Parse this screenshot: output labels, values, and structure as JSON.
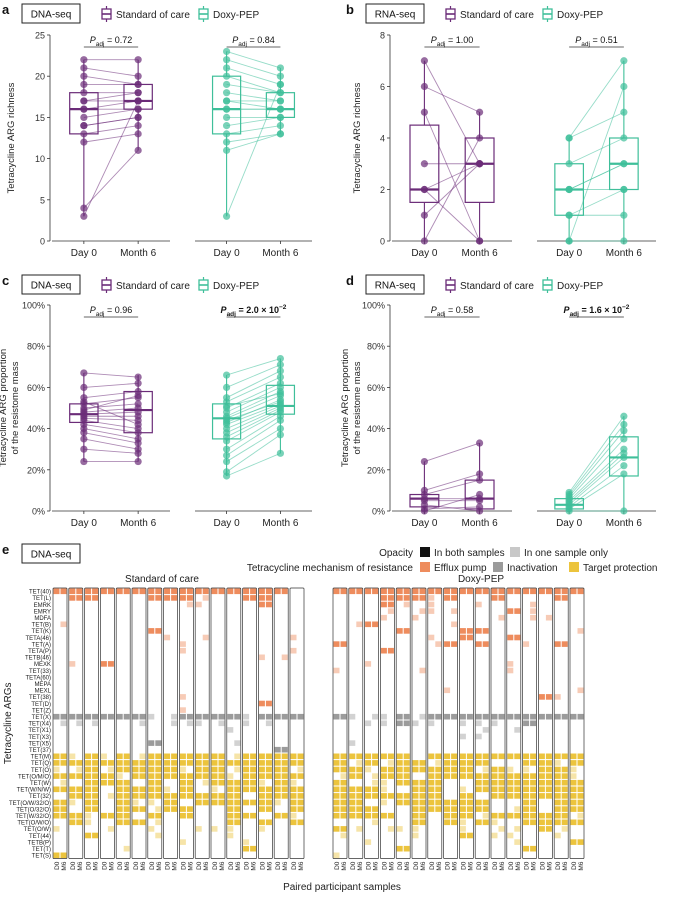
{
  "colors": {
    "soc": "#6b2c78",
    "doxy": "#3fbf9a",
    "efflux": "#ee8c5d",
    "inact": "#9b9b9b",
    "target": "#ecc43d"
  },
  "legend": {
    "soc": "Standard of care",
    "doxy": "Doxy-PEP"
  },
  "chart_data": [
    {
      "panel": "a",
      "type": "box+paired-scatter",
      "assay": "DNA-seq",
      "ylabel": "Tetracycline ARG richness",
      "ylim": [
        0,
        25
      ],
      "yticks": [
        0,
        5,
        10,
        15,
        20,
        25
      ],
      "groups": [
        {
          "name": "Standard of care",
          "categories": [
            "Day 0",
            "Month 6"
          ],
          "day0": [
            22,
            21,
            20,
            19,
            18,
            17,
            17,
            16,
            16,
            15,
            14,
            14,
            13,
            12,
            4,
            3
          ],
          "month6": [
            22,
            20,
            19,
            19,
            18,
            18,
            17,
            17,
            16,
            16,
            15,
            15,
            14,
            13,
            11,
            17
          ],
          "box": [
            {
              "q1": 13,
              "median": 16,
              "q3": 18,
              "lo": 3,
              "hi": 22
            },
            {
              "q1": 16,
              "median": 17,
              "q3": 19,
              "lo": 11,
              "hi": 22
            }
          ],
          "p_prefix": "P",
          "p_sub": "adj",
          "p_value": " = 0.72",
          "p_bold": false
        },
        {
          "name": "Doxy-PEP",
          "categories": [
            "Day 0",
            "Month 6"
          ],
          "day0": [
            23,
            22,
            21,
            20,
            19,
            18,
            17,
            17,
            16,
            16,
            15,
            14,
            13,
            12,
            11,
            3
          ],
          "month6": [
            21,
            20,
            19,
            18,
            18,
            17,
            17,
            16,
            16,
            16,
            15,
            15,
            14,
            13,
            13,
            19
          ],
          "box": [
            {
              "q1": 13,
              "median": 16,
              "q3": 20,
              "lo": 3,
              "hi": 23
            },
            {
              "q1": 15,
              "median": 16,
              "q3": 18,
              "lo": 13,
              "hi": 21
            }
          ],
          "p_prefix": "P",
          "p_sub": "adj",
          "p_value": " = 0.84",
          "p_bold": false
        }
      ]
    },
    {
      "panel": "b",
      "type": "box+paired-scatter",
      "assay": "RNA-seq",
      "ylabel": "Tetracycline ARG richness",
      "ylim": [
        0,
        8
      ],
      "yticks": [
        0,
        2,
        4,
        6,
        8
      ],
      "groups": [
        {
          "name": "Standard of care",
          "categories": [
            "Day 0",
            "Month 6"
          ],
          "day0": [
            7,
            6,
            5,
            3,
            2,
            2,
            1,
            0
          ],
          "month6": [
            3,
            5,
            0,
            3,
            3,
            0,
            3,
            4
          ],
          "box": [
            {
              "q1": 1.5,
              "median": 2,
              "q3": 4.5,
              "lo": 0,
              "hi": 7
            },
            {
              "q1": 1.5,
              "median": 3,
              "q3": 4,
              "lo": 0,
              "hi": 5
            }
          ],
          "p_prefix": "P",
          "p_sub": "adj",
          "p_value": " = 1.00",
          "p_bold": false
        },
        {
          "name": "Doxy-PEP",
          "categories": [
            "Day 0",
            "Month 6"
          ],
          "day0": [
            4,
            4,
            3,
            2,
            2,
            2,
            1,
            1,
            0,
            0
          ],
          "month6": [
            7,
            5,
            4,
            3,
            3,
            2,
            2,
            1,
            0,
            6
          ],
          "box": [
            {
              "q1": 1,
              "median": 2,
              "q3": 3,
              "lo": 0,
              "hi": 4
            },
            {
              "q1": 2,
              "median": 3,
              "q3": 4,
              "lo": 0,
              "hi": 7
            }
          ],
          "p_prefix": "P",
          "p_sub": "adj",
          "p_value": " = 0.51",
          "p_bold": false
        }
      ]
    },
    {
      "panel": "c",
      "type": "box+paired-scatter",
      "assay": "DNA-seq",
      "ylabel": "Tetracycline ARG proportion",
      "ylabel2": "of the resistome mass",
      "ylim": [
        0,
        100
      ],
      "yticks": [
        0,
        20,
        40,
        60,
        80,
        100
      ],
      "tick_suffix": "%",
      "groups": [
        {
          "name": "Standard of care",
          "categories": [
            "Day 0",
            "Month 6"
          ],
          "day0": [
            67,
            60,
            55,
            52,
            50,
            48,
            47,
            46,
            45,
            44,
            42,
            40,
            38,
            35,
            30,
            24,
            49,
            53
          ],
          "month6": [
            65,
            62,
            58,
            55,
            52,
            50,
            48,
            46,
            44,
            40,
            38,
            35,
            33,
            30,
            28,
            24,
            56,
            42
          ],
          "box": [
            {
              "q1": 43,
              "median": 47,
              "q3": 52,
              "lo": 24,
              "hi": 67
            },
            {
              "q1": 38,
              "median": 49,
              "q3": 58,
              "lo": 24,
              "hi": 66
            }
          ],
          "p_prefix": "P",
          "p_sub": "adj",
          "p_value": " = 0.96",
          "p_bold": false
        },
        {
          "name": "Doxy-PEP",
          "categories": [
            "Day 0",
            "Month 6"
          ],
          "day0": [
            66,
            60,
            55,
            53,
            50,
            48,
            46,
            45,
            43,
            42,
            40,
            38,
            36,
            34,
            30,
            27,
            24,
            19,
            17,
            51,
            44
          ],
          "month6": [
            74,
            71,
            68,
            65,
            62,
            60,
            58,
            56,
            54,
            52,
            51,
            50,
            49,
            48,
            46,
            44,
            40,
            37,
            28,
            57,
            53
          ],
          "box": [
            {
              "q1": 35,
              "median": 45,
              "q3": 52,
              "lo": 17,
              "hi": 66
            },
            {
              "q1": 47,
              "median": 51,
              "q3": 61,
              "lo": 28,
              "hi": 74
            }
          ],
          "p_prefix": "P",
          "p_sub": "adj",
          "p_value": " = 2.0 × 10",
          "p_exp": "−2",
          "p_bold": true
        }
      ]
    },
    {
      "panel": "d",
      "type": "box+paired-scatter",
      "assay": "RNA-seq",
      "ylabel": "Tetracycline ARG proportion",
      "ylabel2": "of the resistome mass",
      "ylim": [
        0,
        100
      ],
      "yticks": [
        0,
        20,
        40,
        60,
        80,
        100
      ],
      "tick_suffix": "%",
      "groups": [
        {
          "name": "Standard of care",
          "categories": [
            "Day 0",
            "Month 6"
          ],
          "day0": [
            24,
            10,
            8,
            6,
            5,
            3,
            1,
            0
          ],
          "month6": [
            33,
            18,
            15,
            6,
            5,
            0,
            2,
            8
          ],
          "box": [
            {
              "q1": 2,
              "median": 6,
              "q3": 8,
              "lo": 0,
              "hi": 24
            },
            {
              "q1": 1,
              "median": 6,
              "q3": 15,
              "lo": 0,
              "hi": 33
            }
          ],
          "p_prefix": "P",
          "p_sub": "adj",
          "p_value": " = 0.58",
          "p_bold": false
        },
        {
          "name": "Doxy-PEP",
          "categories": [
            "Day 0",
            "Month 6"
          ],
          "day0": [
            9,
            7,
            6,
            5,
            3,
            2,
            1,
            0,
            8,
            4
          ],
          "month6": [
            46,
            39,
            35,
            30,
            26,
            22,
            18,
            0,
            42,
            28
          ],
          "box": [
            {
              "q1": 1,
              "median": 3,
              "q3": 6,
              "lo": 0,
              "hi": 9
            },
            {
              "q1": 17,
              "median": 26,
              "q3": 36,
              "lo": 0,
              "hi": 46
            }
          ],
          "p_prefix": "P",
          "p_sub": "adj",
          "p_value": " = 1.6 × 10",
          "p_exp": "−2",
          "p_bold": true
        }
      ]
    },
    {
      "panel": "e",
      "type": "heatmap",
      "assay": "DNA-seq",
      "opacity_title": "Opacity",
      "opacity_both": "In both samples",
      "opacity_one": "In one sample only",
      "mechanism_title": "Tetracycline mechanism of resistance",
      "mechanisms": [
        "Efflux pump",
        "Inactivation",
        "Target protection"
      ],
      "ylabel": "Tetracycline ARGs",
      "xlabel": "Paired participant samples",
      "group_titles": [
        "Standard of care",
        "Doxy-PEP"
      ],
      "pairs_per_group": 16,
      "sample_labels": [
        "D0",
        "M6"
      ],
      "genes": [
        "TET(40)",
        "TET(L)",
        "EMRK",
        "EMRY",
        "MDFA",
        "TET(B)",
        "TET(K)",
        "TETA(46)",
        "TET(A)",
        "TETA(P)",
        "TETB(46)",
        "MEXK",
        "TET(33)",
        "TETA(60)",
        "MEPA",
        "MEXL",
        "TET(38)",
        "TET(D)",
        "TET(Z)",
        "TET(X)",
        "TET(X4)",
        "TET(X1)",
        "TET(X3)",
        "TET(X5)",
        "TET(37)",
        "TET(M)",
        "TET(Q)",
        "TET(O)",
        "TET(O/M/O)",
        "TET(W)",
        "TET(W/N/W)",
        "TET(32)",
        "TET(O/W/32/O)",
        "TET(O/32/O)",
        "TET(W/32/O)",
        "TET(O/W/O)",
        "TET(O/W)",
        "TET(44)",
        "TETB(P)",
        "TET(T)",
        "TET(S)"
      ],
      "gene_mechanism": [
        "E",
        "E",
        "E",
        "E",
        "E",
        "E",
        "E",
        "E",
        "E",
        "E",
        "E",
        "E",
        "E",
        "E",
        "E",
        "E",
        "E",
        "E",
        "E",
        "I",
        "I",
        "I",
        "I",
        "I",
        "I",
        "T",
        "T",
        "T",
        "T",
        "T",
        "T",
        "T",
        "T",
        "T",
        "T",
        "T",
        "T",
        "T",
        "T",
        "T",
        "T"
      ],
      "gene_prevalence": [
        0.95,
        0.62,
        0.22,
        0.22,
        0.2,
        0.18,
        0.22,
        0.22,
        0.12,
        0.1,
        0.07,
        0.05,
        0.05,
        0.04,
        0.03,
        0.03,
        0.03,
        0.03,
        0.03,
        0.98,
        0.5,
        0.25,
        0.1,
        0.04,
        0.03,
        0.97,
        0.95,
        0.94,
        0.9,
        0.82,
        0.8,
        0.78,
        0.75,
        0.72,
        0.7,
        0.65,
        0.55,
        0.3,
        0.15,
        0.06,
        0.04
      ]
    }
  ]
}
